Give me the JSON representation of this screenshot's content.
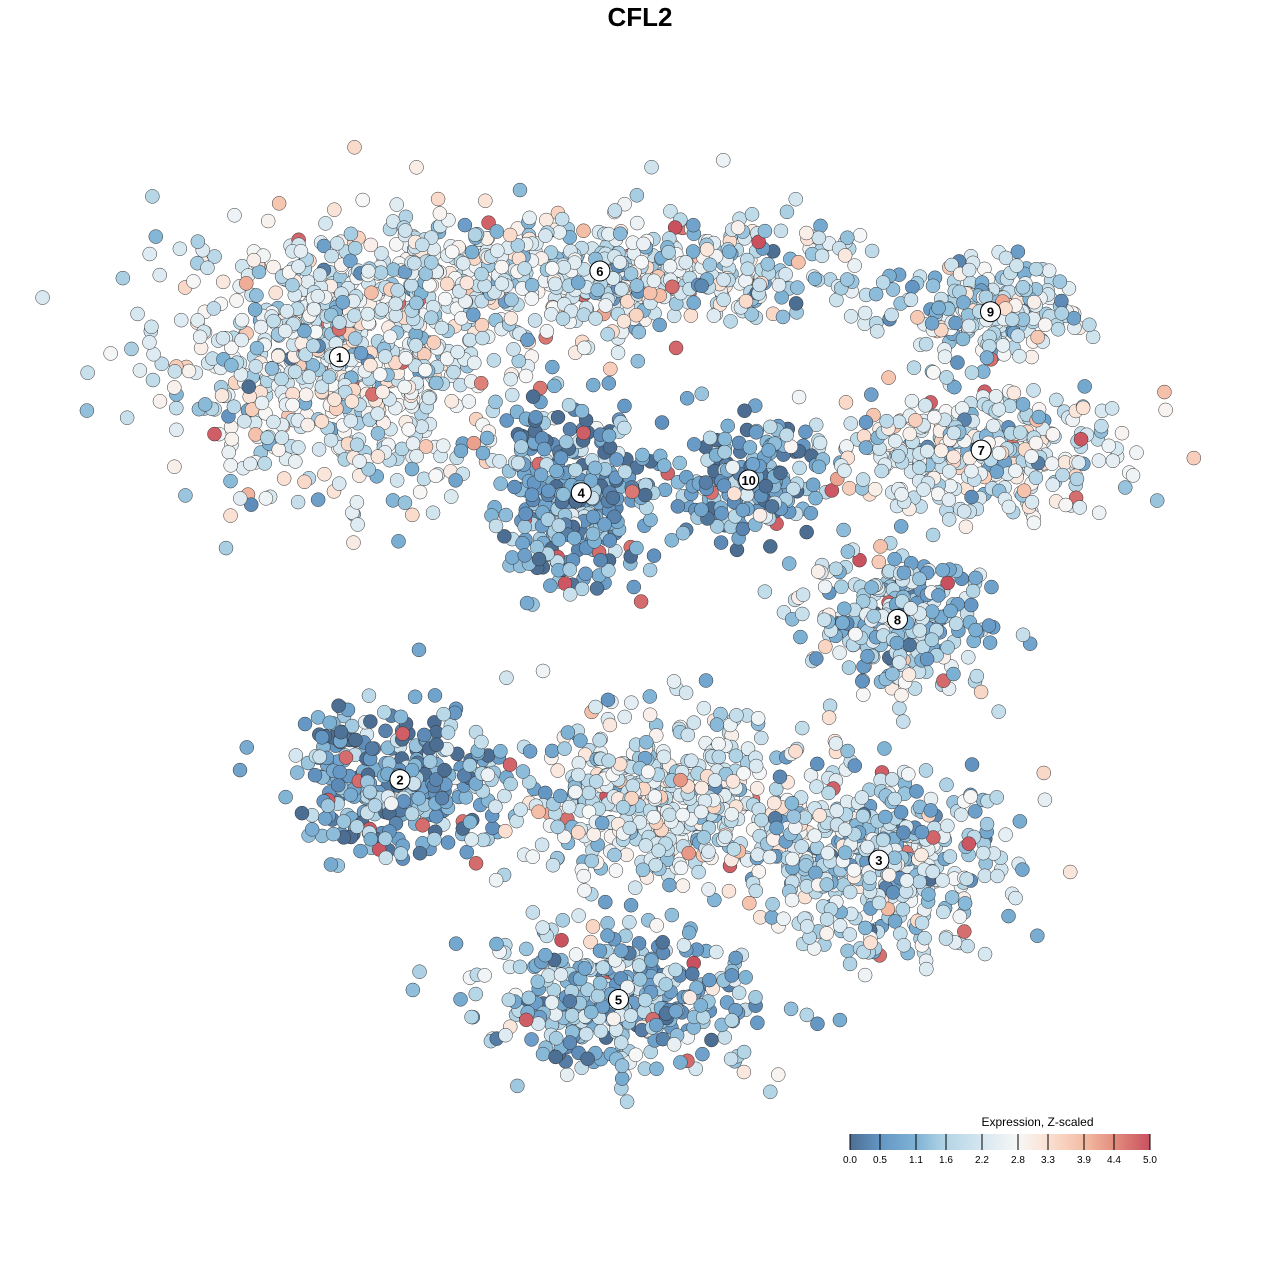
{
  "chart_data": {
    "type": "scatter",
    "title": "CFL2",
    "xlabel": "",
    "ylabel": "",
    "xlim": [
      -50,
      50
    ],
    "ylim": [
      -50,
      50
    ],
    "grid": false,
    "axes_visible": false,
    "point_style": {
      "outline": "#333333",
      "opacity": 0.95
    },
    "clusters": [
      {
        "label": "1",
        "center": [
          -35,
          31
        ],
        "spread": [
          12,
          9
        ],
        "mean_expression": 2.3
      },
      {
        "label": "6",
        "center": [
          -7,
          40.5
        ],
        "spread": [
          19,
          4
        ],
        "mean_expression": 2.0
      },
      {
        "label": "4",
        "center": [
          -9,
          16
        ],
        "spread": [
          5.5,
          6.5
        ],
        "mean_expression": 0.8
      },
      {
        "label": "10",
        "center": [
          9,
          17.4
        ],
        "spread": [
          4,
          4
        ],
        "mean_expression": 0.9
      },
      {
        "label": "9",
        "center": [
          35,
          36
        ],
        "spread": [
          6,
          3
        ],
        "mean_expression": 2.0
      },
      {
        "label": "7",
        "center": [
          34,
          20.7
        ],
        "spread": [
          10,
          4
        ],
        "mean_expression": 2.2
      },
      {
        "label": "8",
        "center": [
          25,
          2
        ],
        "spread": [
          6,
          5
        ],
        "mean_expression": 1.6
      },
      {
        "label": "2",
        "center": [
          -28.5,
          -15.7
        ],
        "spread": [
          7,
          5
        ],
        "mean_expression": 0.8
      },
      {
        "label": "",
        "center": [
          -0.5,
          -18
        ],
        "spread": [
          10,
          6
        ],
        "mean_expression": 2.2
      },
      {
        "label": "3",
        "center": [
          23,
          -24.6
        ],
        "spread": [
          9,
          6
        ],
        "mean_expression": 1.8
      },
      {
        "label": "5",
        "center": [
          -5,
          -40
        ],
        "spread": [
          9,
          5
        ],
        "mean_expression": 1.3
      }
    ],
    "legend": {
      "title": "Expression, Z-scaled",
      "placement": "bottom-right",
      "ticks": [
        "0.0",
        "0.5",
        "1.1",
        "1.6",
        "2.2",
        "2.8",
        "3.3",
        "3.9",
        "4.4",
        "5.0"
      ],
      "range": [
        0,
        5
      ],
      "colors": [
        "#4c6e93",
        "#6496c4",
        "#7fb3d5",
        "#b3d5e6",
        "#d6e7f0",
        "#f7f7f7",
        "#fbe0d2",
        "#f4bca4",
        "#e38e7e",
        "#c9505f"
      ]
    }
  }
}
